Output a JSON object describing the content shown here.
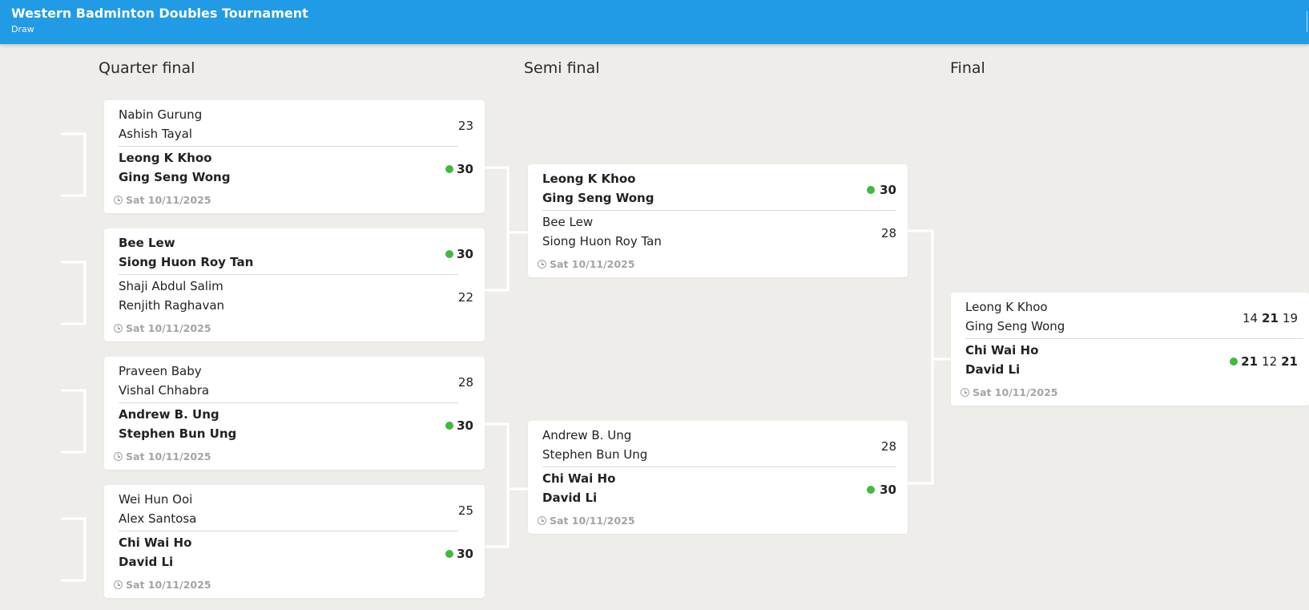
{
  "header": {
    "title": "Western Badminton Doubles Tournament",
    "subtitle": "Draw"
  },
  "rounds": {
    "quarter": "Quarter final",
    "semi": "Semi final",
    "final": "Final"
  },
  "colors": {
    "header_bg": "#229be6",
    "winner_dot": "#3fba3f",
    "page_bg": "#eeede9"
  },
  "icons": {
    "date": "clock-icon",
    "winner": "winner-dot-icon"
  },
  "matches": {
    "qf1": {
      "date": "Sat 10/11/2025",
      "top": {
        "p1": "Nabin Gurung",
        "p2": "Ashish Tayal",
        "score": "23",
        "winner": false
      },
      "bottom": {
        "p1": "Leong K Khoo",
        "p2": "Ging Seng Wong",
        "score": "30",
        "winner": true
      }
    },
    "qf2": {
      "date": "Sat 10/11/2025",
      "top": {
        "p1": "Bee Lew",
        "p2": "Siong Huon Roy Tan",
        "score": "30",
        "winner": true
      },
      "bottom": {
        "p1": "Shaji Abdul Salim",
        "p2": "Renjith Raghavan",
        "score": "22",
        "winner": false
      }
    },
    "qf3": {
      "date": "Sat 10/11/2025",
      "top": {
        "p1": "Praveen Baby",
        "p2": "Vishal Chhabra",
        "score": "28",
        "winner": false
      },
      "bottom": {
        "p1": "Andrew B. Ung",
        "p2": "Stephen Bun Ung",
        "score": "30",
        "winner": true
      }
    },
    "qf4": {
      "date": "Sat 10/11/2025",
      "top": {
        "p1": "Wei Hun Ooi",
        "p2": "Alex Santosa",
        "score": "25",
        "winner": false
      },
      "bottom": {
        "p1": "Chi Wai Ho",
        "p2": "David Li",
        "score": "30",
        "winner": true
      }
    },
    "sf1": {
      "date": "Sat 10/11/2025",
      "top": {
        "p1": "Leong K Khoo",
        "p2": "Ging Seng Wong",
        "score": "30",
        "winner": true
      },
      "bottom": {
        "p1": "Bee Lew",
        "p2": "Siong Huon Roy Tan",
        "score": "28",
        "winner": false
      }
    },
    "sf2": {
      "date": "Sat 10/11/2025",
      "top": {
        "p1": "Andrew B. Ung",
        "p2": "Stephen Bun Ung",
        "score": "28",
        "winner": false
      },
      "bottom": {
        "p1": "Chi Wai Ho",
        "p2": "David Li",
        "score": "30",
        "winner": true
      }
    },
    "final": {
      "date": "Sat 10/11/2025",
      "top": {
        "p1": "Leong K Khoo",
        "p2": "Ging Seng Wong",
        "sets": [
          "14",
          "21",
          "19"
        ],
        "winner": false
      },
      "bottom": {
        "p1": "Chi Wai Ho",
        "p2": "David Li",
        "sets": [
          "21",
          "12",
          "21"
        ],
        "winner": true
      }
    }
  }
}
